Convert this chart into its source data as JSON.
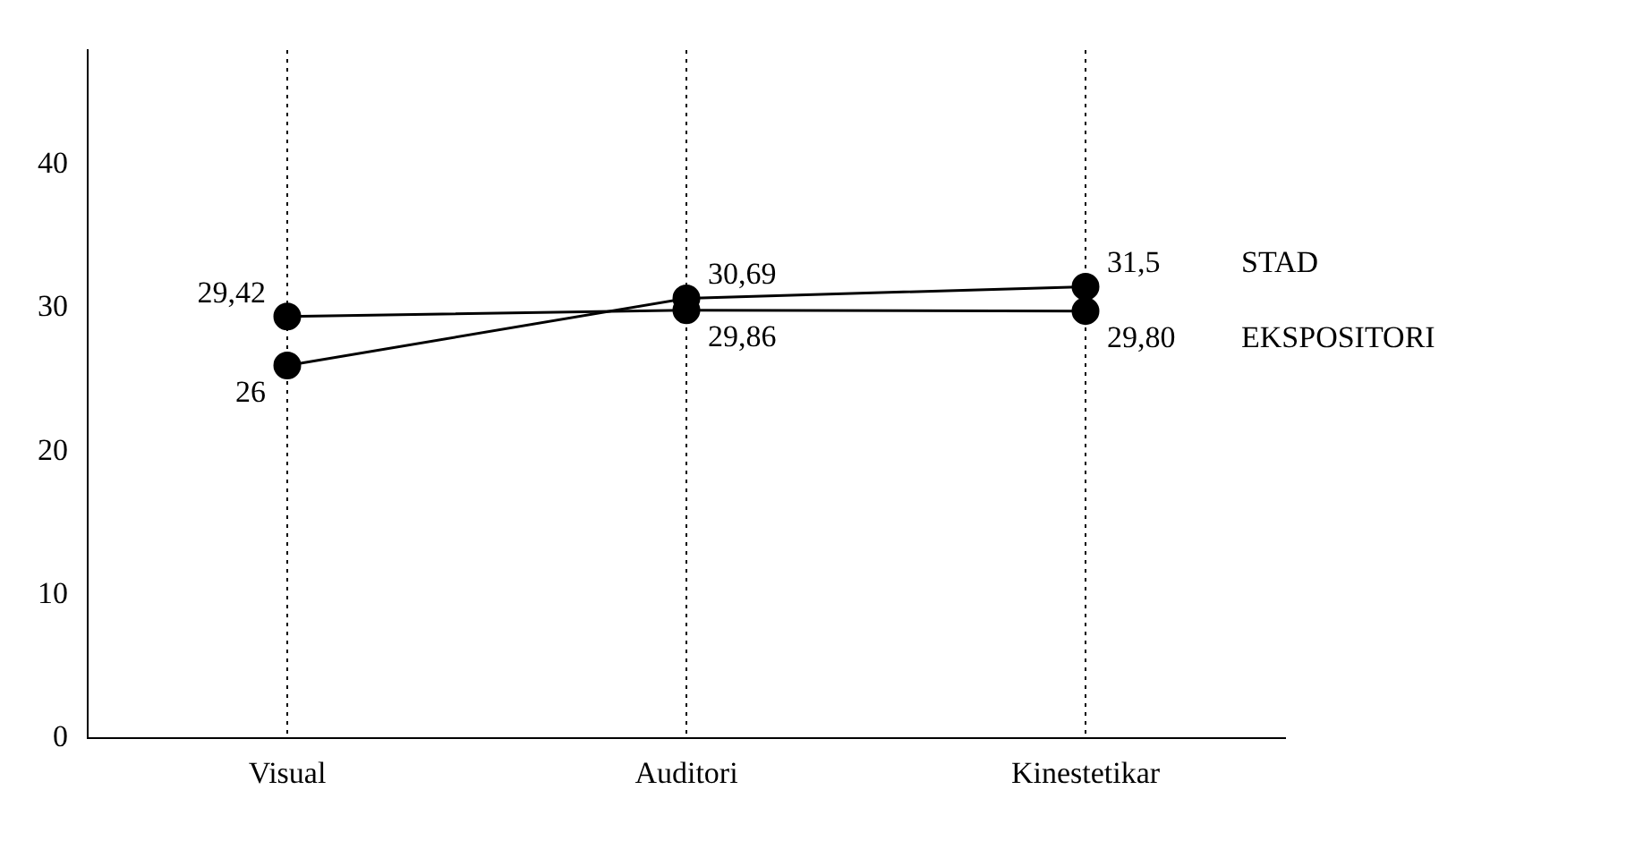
{
  "chart_data": {
    "type": "line",
    "categories": [
      "Visual",
      "Auditori",
      "Kinestetikar"
    ],
    "series": [
      {
        "name": "STAD",
        "color": "#000000",
        "values": [
          26,
          30.69,
          31.5
        ],
        "value_labels": [
          "26",
          "30,69",
          "31,5"
        ]
      },
      {
        "name": "EKSPOSITORI",
        "color": "#000000",
        "values": [
          29.42,
          29.86,
          29.8
        ],
        "value_labels": [
          "29,42",
          "29,86",
          "29,80"
        ]
      }
    ],
    "ylim": [
      0,
      48
    ],
    "yticks": [
      0,
      10,
      20,
      30,
      40
    ],
    "grid": "x",
    "marker": "circle",
    "line_style": "solid",
    "legend": false
  }
}
